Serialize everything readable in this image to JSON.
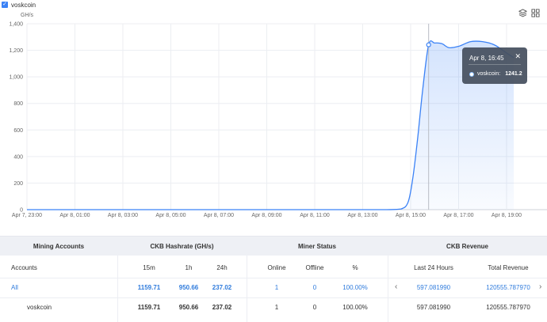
{
  "legend": {
    "label": "voskcoin",
    "color": "#3b82f6"
  },
  "toolbar": {
    "icons": [
      "layers-icon",
      "grid-icon"
    ]
  },
  "chart_data": {
    "type": "area",
    "ylabel": "GH/s",
    "ylim": [
      0,
      1400
    ],
    "yticks": [
      0,
      200,
      400,
      600,
      800,
      1000,
      1200,
      1400
    ],
    "ytick_labels": [
      "0",
      "200",
      "400",
      "600",
      "800",
      "1,000",
      "1,200",
      "1,400"
    ],
    "xticks": [
      "Apr 7, 23:00",
      "Apr 8, 01:00",
      "Apr 8, 03:00",
      "Apr 8, 05:00",
      "Apr 8, 07:00",
      "Apr 8, 09:00",
      "Apr 8, 11:00",
      "Apr 8, 13:00",
      "Apr 8, 15:00",
      "Apr 8, 17:00",
      "Apr 8, 19:00"
    ],
    "x_hours": [
      0,
      1,
      2,
      3,
      4,
      5,
      6,
      7,
      8,
      9,
      10,
      11,
      12,
      13,
      14,
      15,
      15.6,
      15.9,
      16.1,
      16.3,
      16.5,
      16.75,
      17.0,
      17.3,
      17.6,
      18.0,
      18.5,
      19.0,
      19.5,
      20.0,
      20.3
    ],
    "series": [
      {
        "name": "voskcoin",
        "values": [
          0,
          0,
          0,
          0,
          0,
          0,
          0,
          0,
          0,
          0,
          0,
          0,
          0,
          0,
          0,
          0,
          5,
          60,
          250,
          550,
          900,
          1241.2,
          1255,
          1250,
          1220,
          1230,
          1265,
          1265,
          1240,
          1180,
          1145
        ]
      }
    ],
    "grid": true,
    "tooltip": {
      "title": "Apr 8, 16:45",
      "series": "voskcoin:",
      "value": "1241.2"
    }
  },
  "table": {
    "groups": {
      "accounts": "Mining Accounts",
      "hashrate": "CKB Hashrate (GH/s)",
      "status": "Miner Status",
      "revenue": "CKB Revenue"
    },
    "subheads": {
      "accounts": "Accounts",
      "m15": "15m",
      "h1": "1h",
      "h24": "24h",
      "online": "Online",
      "offline": "Offline",
      "pct": "%",
      "last24": "Last 24 Hours",
      "total": "Total Revenue"
    },
    "rows": [
      {
        "account": "All",
        "m15": "1159.71",
        "h1": "950.66",
        "h24": "237.02",
        "online": "1",
        "offline": "0",
        "pct": "100.00%",
        "last24": "597.081990",
        "total": "120555.787970"
      },
      {
        "account": "voskcoin",
        "m15": "1159.71",
        "h1": "950.66",
        "h24": "237.02",
        "online": "1",
        "offline": "0",
        "pct": "100.00%",
        "last24": "597.081990",
        "total": "120555.787970"
      }
    ]
  }
}
